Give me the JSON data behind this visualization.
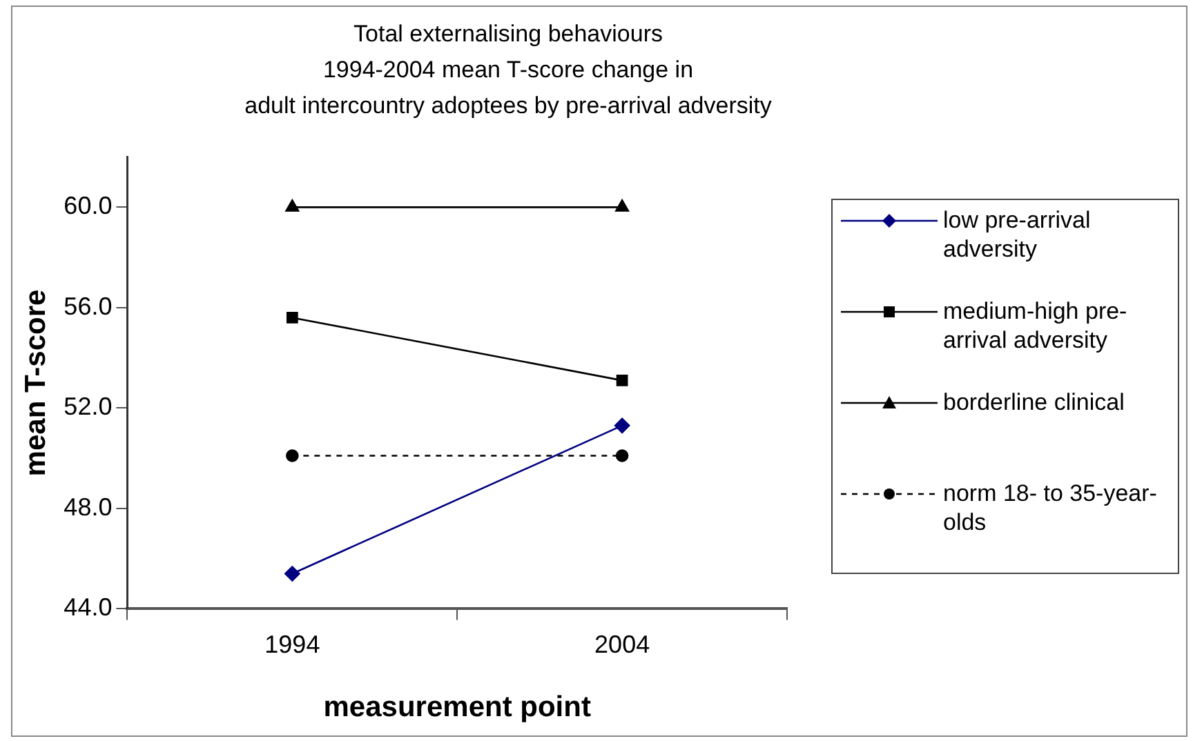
{
  "chart_data": {
    "type": "line",
    "title": "Total externalising behaviours\n1994-2004 mean T-score change in\nadult intercountry adoptees by pre-arrival adversity",
    "xlabel": "measurement point",
    "ylabel": "mean T-score",
    "categories": [
      "1994",
      "2004"
    ],
    "series": [
      {
        "name": "low pre-arrival adversity",
        "color": "#000080",
        "values": [
          45.4,
          51.3
        ],
        "marker": "diamond",
        "line_style": "solid"
      },
      {
        "name": "medium-high pre-arrival adversity",
        "color": "#000000",
        "values": [
          55.6,
          53.1
        ],
        "marker": "square",
        "line_style": "solid"
      },
      {
        "name": "borderline clinical",
        "color": "#000000",
        "values": [
          60,
          60
        ],
        "marker": "triangle",
        "line_style": "solid"
      },
      {
        "name": "norm 18- to 35-year-olds",
        "color": "#000000",
        "values": [
          50.1,
          50.1
        ],
        "marker": "circle",
        "line_style": "dashed"
      }
    ],
    "ylim": [
      44,
      62
    ],
    "yticks": [
      {
        "value": 44,
        "label": "44.0"
      },
      {
        "value": 48,
        "label": "48.0"
      },
      {
        "value": 52,
        "label": "52.0"
      },
      {
        "value": 56,
        "label": "56.0"
      },
      {
        "value": 60,
        "label": "60.0"
      }
    ],
    "grid": false,
    "legend": "right"
  }
}
